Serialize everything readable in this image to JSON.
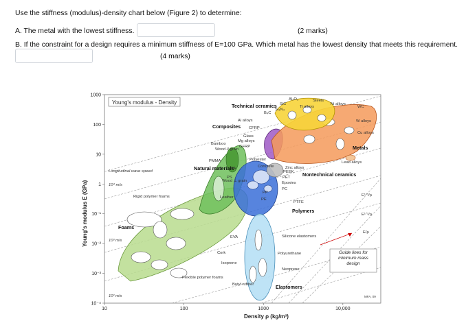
{
  "question": {
    "intro": "Use the stiffness (modulus)-density chart below (Figure 2) to determine:",
    "part_a": "A. The metal with the lowest stiffness.",
    "part_a_marks": "(2 marks)",
    "part_b": "B. If the constraint for a design requires a minimum stiffness of E=100 GPa. Which metal has the lowest density that meets this requirement.",
    "part_b_marks": "(4 marks)",
    "answer_a_value": "",
    "answer_b_value": ""
  },
  "chart_data": {
    "type": "scatter",
    "title": "Young's modulus - Density",
    "xlabel": "Density ρ (kg/m³)",
    "ylabel": "Young's modulus E (GPa)",
    "xscale": "log",
    "yscale": "log",
    "xlim": [
      10,
      30000
    ],
    "ylim": [
      0.0001,
      1000
    ],
    "x_ticks": [
      "10",
      "100",
      "1000",
      "10,000"
    ],
    "y_ticks": [
      "1000",
      "100",
      "10",
      "1",
      "10⁻¹",
      "10⁻²",
      "10⁻³",
      "10⁻⁴"
    ],
    "families": [
      {
        "name": "Technical ceramics",
        "color": "#f5c400"
      },
      {
        "name": "Composites",
        "color": "#9b59b6"
      },
      {
        "name": "Metals",
        "color": "#f07a28"
      },
      {
        "name": "Natural materials",
        "color": "#4caf50"
      },
      {
        "name": "Polymers",
        "color": "#3a6fd8"
      },
      {
        "name": "Foams",
        "color": "#a5d07a"
      },
      {
        "name": "Elastomers",
        "color": "#9fd3f0"
      },
      {
        "name": "Nontechnical ceramics",
        "color": "#a0a0a0"
      }
    ],
    "annotations": {
      "ceramics": [
        "Al₂O₃",
        "SiC",
        "Si₃N₄",
        "B₄C",
        "Steels",
        "Ti alloys",
        "Ni alloys",
        "WC"
      ],
      "metals": [
        "W alloys",
        "Cu alloys",
        "Zinc alloys",
        "Lead alloys",
        "Al alloys",
        "Mg alloys"
      ],
      "composites": [
        "CFRP",
        "GFRP",
        "Glass"
      ],
      "natural": [
        "Bamboo",
        "Wood // grain",
        "Wood ⊥ grain",
        "Leather"
      ],
      "polymers": [
        "PMMA",
        "PA",
        "PS",
        "PP",
        "PE",
        "PEEK",
        "PET",
        "Epoxies",
        "PC",
        "PTFE",
        "Polyester",
        "Concrete"
      ],
      "elastomers": [
        "EVA",
        "Cork",
        "Isoprene",
        "Butyl rubber",
        "Silicone elastomers",
        "Polyurethane",
        "Neoprene"
      ],
      "foams": [
        "Rigid polymer foams",
        "Flexible polymer foams"
      ],
      "wave_speed": [
        "Longitudinal wave speed",
        "10⁴ m/s",
        "10³ m/s",
        "10² m/s"
      ],
      "guide_lines_label": "Guide lines for minimum mass design",
      "guide_terms": [
        "E¹ᐟ³/ρ",
        "E¹ᐟ²/ρ",
        "E/ρ"
      ],
      "credit": "MFA, 09"
    }
  }
}
